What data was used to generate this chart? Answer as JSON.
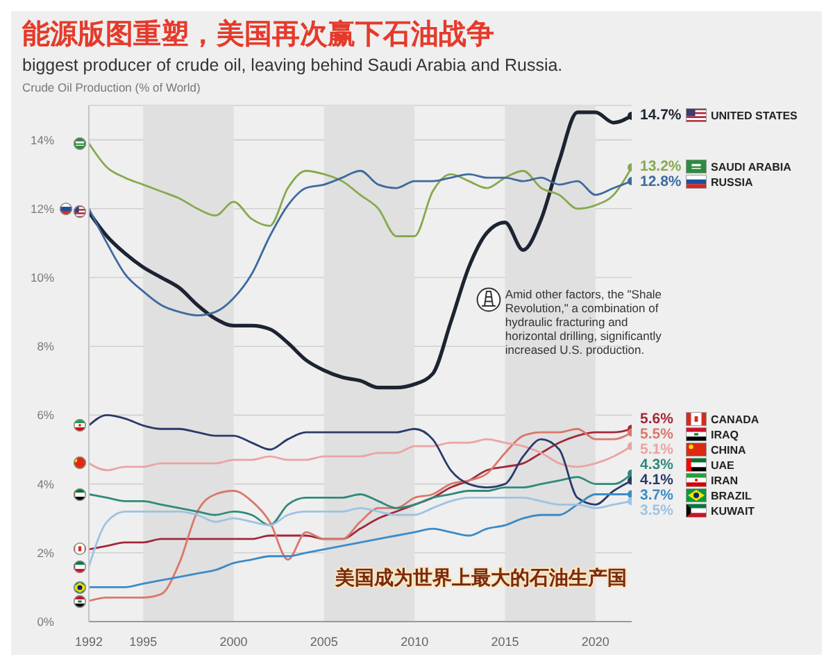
{
  "chart_data": {
    "type": "line",
    "title": "能源版图重塑，美国再次赢下石油战争",
    "subtitle": "biggest producer of crude oil, leaving behind Saudi Arabia and Russia.",
    "ylabel": "Crude Oil Production (% of World)",
    "annotations": [
      "Amid other factors, the \"Shale Revolution,\" a combination of hydraulic fracturing and horizontal drilling, significantly increased U.S. production.",
      "美国成为世界上最大的石油生产国"
    ],
    "x": [
      1992,
      1993,
      1994,
      1995,
      1996,
      1997,
      1998,
      1999,
      2000,
      2001,
      2002,
      2003,
      2004,
      2005,
      2006,
      2007,
      2008,
      2009,
      2010,
      2011,
      2012,
      2013,
      2014,
      2015,
      2016,
      2017,
      2018,
      2019,
      2020,
      2021,
      2022
    ],
    "xlim": [
      1992,
      2022
    ],
    "xticks": [
      1992,
      1995,
      2000,
      2005,
      2010,
      2015,
      2020
    ],
    "ylim": [
      0,
      15
    ],
    "yticks": [
      {
        "value": 0,
        "label": "0%"
      },
      {
        "value": 2,
        "label": "2%"
      },
      {
        "value": 4,
        "label": "4%"
      },
      {
        "value": 6,
        "label": "6%"
      },
      {
        "value": 8,
        "label": "8%"
      },
      {
        "value": 10,
        "label": "10%"
      },
      {
        "value": 12,
        "label": "12%"
      },
      {
        "value": 14,
        "label": "14%"
      }
    ],
    "grid": "y",
    "legend": "right",
    "bands": [
      {
        "axis": "x",
        "from": 1995,
        "to": 2000,
        "color": "#e0e0e0"
      },
      {
        "axis": "x",
        "from": 2005,
        "to": 2010,
        "color": "#e0e0e0"
      },
      {
        "axis": "x",
        "from": 2015,
        "to": 2020,
        "color": "#e0e0e0"
      }
    ],
    "series": [
      {
        "name": "UNITED STATES",
        "color": "#1c2331",
        "values": [
          11.9,
          11.2,
          10.7,
          10.3,
          10.0,
          9.7,
          9.2,
          8.8,
          8.6,
          8.6,
          8.5,
          8.1,
          7.6,
          7.3,
          7.1,
          7.0,
          6.8,
          6.8,
          6.9,
          7.2,
          8.7,
          10.3,
          11.3,
          11.6,
          10.8,
          11.7,
          13.4,
          14.8,
          14.8,
          14.5,
          14.7
        ],
        "value_labels": [
          null,
          null,
          null,
          null,
          null,
          null,
          null,
          null,
          null,
          null,
          null,
          null,
          null,
          null,
          null,
          null,
          null,
          null,
          null,
          null,
          null,
          null,
          null,
          null,
          null,
          null,
          null,
          null,
          null,
          null,
          "14.7%"
        ]
      },
      {
        "name": "SAUDI ARABIA",
        "color": "#86a94f",
        "values": [
          13.9,
          13.2,
          12.9,
          12.7,
          12.5,
          12.3,
          12.0,
          11.8,
          12.2,
          11.7,
          11.5,
          12.6,
          13.1,
          13.0,
          12.8,
          12.4,
          12.0,
          11.2,
          11.2,
          12.5,
          13.0,
          12.8,
          12.6,
          12.9,
          13.1,
          12.6,
          12.4,
          12.0,
          12.1,
          12.4,
          13.2
        ],
        "value_labels": [
          null,
          null,
          null,
          null,
          null,
          null,
          null,
          null,
          null,
          null,
          null,
          null,
          null,
          null,
          null,
          null,
          null,
          null,
          null,
          null,
          null,
          null,
          null,
          null,
          null,
          null,
          null,
          null,
          null,
          null,
          "13.2%"
        ]
      },
      {
        "name": "RUSSIA",
        "color": "#3d6a9e",
        "values": [
          12.0,
          11.0,
          10.1,
          9.6,
          9.2,
          9.0,
          8.9,
          9.0,
          9.4,
          10.1,
          11.2,
          12.1,
          12.6,
          12.7,
          12.9,
          13.1,
          12.7,
          12.6,
          12.8,
          12.8,
          12.9,
          13.0,
          12.9,
          12.9,
          12.8,
          12.9,
          12.7,
          12.8,
          12.4,
          12.6,
          12.8
        ],
        "value_labels": [
          null,
          null,
          null,
          null,
          null,
          null,
          null,
          null,
          null,
          null,
          null,
          null,
          null,
          null,
          null,
          null,
          null,
          null,
          null,
          null,
          null,
          null,
          null,
          null,
          null,
          null,
          null,
          null,
          null,
          null,
          "12.8%"
        ]
      },
      {
        "name": "CANADA",
        "color": "#a1283a",
        "values": [
          2.1,
          2.2,
          2.3,
          2.3,
          2.4,
          2.4,
          2.4,
          2.4,
          2.4,
          2.4,
          2.5,
          2.5,
          2.5,
          2.4,
          2.4,
          2.7,
          3.0,
          3.2,
          3.4,
          3.6,
          3.9,
          4.1,
          4.4,
          4.5,
          4.6,
          4.9,
          5.2,
          5.4,
          5.5,
          5.5,
          5.6
        ],
        "value_labels": [
          null,
          null,
          null,
          null,
          null,
          null,
          null,
          null,
          null,
          null,
          null,
          null,
          null,
          null,
          null,
          null,
          null,
          null,
          null,
          null,
          null,
          null,
          null,
          null,
          null,
          null,
          null,
          null,
          null,
          null,
          "5.6%"
        ]
      },
      {
        "name": "IRAQ",
        "color": "#d9786a",
        "values": [
          0.6,
          0.7,
          0.7,
          0.7,
          0.8,
          1.7,
          3.2,
          3.7,
          3.8,
          3.5,
          2.9,
          1.8,
          2.6,
          2.4,
          2.4,
          2.9,
          3.3,
          3.3,
          3.6,
          3.7,
          4.0,
          4.1,
          4.3,
          4.9,
          5.4,
          5.5,
          5.5,
          5.6,
          5.3,
          5.3,
          5.5
        ],
        "value_labels": [
          null,
          null,
          null,
          null,
          null,
          null,
          null,
          null,
          null,
          null,
          null,
          null,
          null,
          null,
          null,
          null,
          null,
          null,
          null,
          null,
          null,
          null,
          null,
          null,
          null,
          null,
          null,
          null,
          null,
          null,
          "5.5%"
        ]
      },
      {
        "name": "CHINA",
        "color": "#eba3a3",
        "values": [
          4.6,
          4.4,
          4.5,
          4.5,
          4.6,
          4.6,
          4.6,
          4.6,
          4.7,
          4.7,
          4.8,
          4.7,
          4.7,
          4.8,
          4.8,
          4.8,
          4.9,
          4.9,
          5.1,
          5.1,
          5.2,
          5.2,
          5.3,
          5.2,
          5.1,
          4.9,
          4.6,
          4.5,
          4.6,
          4.8,
          5.1
        ],
        "value_labels": [
          null,
          null,
          null,
          null,
          null,
          null,
          null,
          null,
          null,
          null,
          null,
          null,
          null,
          null,
          null,
          null,
          null,
          null,
          null,
          null,
          null,
          null,
          null,
          null,
          null,
          null,
          null,
          null,
          null,
          null,
          "5.1%"
        ]
      },
      {
        "name": "UAE",
        "color": "#2f8a78",
        "values": [
          3.7,
          3.6,
          3.5,
          3.5,
          3.4,
          3.3,
          3.2,
          3.1,
          3.2,
          3.1,
          2.8,
          3.4,
          3.6,
          3.6,
          3.6,
          3.7,
          3.5,
          3.3,
          3.4,
          3.6,
          3.7,
          3.8,
          3.8,
          3.9,
          3.9,
          4.0,
          4.1,
          4.2,
          4.0,
          4.0,
          4.3
        ],
        "value_labels": [
          null,
          null,
          null,
          null,
          null,
          null,
          null,
          null,
          null,
          null,
          null,
          null,
          null,
          null,
          null,
          null,
          null,
          null,
          null,
          null,
          null,
          null,
          null,
          null,
          null,
          null,
          null,
          null,
          null,
          null,
          "4.3%"
        ]
      },
      {
        "name": "IRAN",
        "color": "#2a3a6a",
        "values": [
          5.7,
          6.0,
          5.9,
          5.7,
          5.6,
          5.6,
          5.5,
          5.4,
          5.4,
          5.2,
          5.0,
          5.3,
          5.5,
          5.5,
          5.5,
          5.5,
          5.5,
          5.5,
          5.6,
          5.3,
          4.4,
          4.0,
          3.9,
          4.0,
          4.8,
          5.3,
          5.0,
          3.6,
          3.4,
          3.8,
          4.1
        ],
        "value_labels": [
          null,
          null,
          null,
          null,
          null,
          null,
          null,
          null,
          null,
          null,
          null,
          null,
          null,
          null,
          null,
          null,
          null,
          null,
          null,
          null,
          null,
          null,
          null,
          null,
          null,
          null,
          null,
          null,
          null,
          null,
          "4.1%"
        ]
      },
      {
        "name": "BRAZIL",
        "color": "#3b8bc8",
        "values": [
          1.0,
          1.0,
          1.0,
          1.1,
          1.2,
          1.3,
          1.4,
          1.5,
          1.7,
          1.8,
          1.9,
          1.9,
          2.0,
          2.1,
          2.2,
          2.3,
          2.4,
          2.5,
          2.6,
          2.7,
          2.6,
          2.5,
          2.7,
          2.8,
          3.0,
          3.1,
          3.1,
          3.4,
          3.7,
          3.7,
          3.7
        ],
        "value_labels": [
          null,
          null,
          null,
          null,
          null,
          null,
          null,
          null,
          null,
          null,
          null,
          null,
          null,
          null,
          null,
          null,
          null,
          null,
          null,
          null,
          null,
          null,
          null,
          null,
          null,
          null,
          null,
          null,
          null,
          null,
          "3.7%"
        ]
      },
      {
        "name": "KUWAIT",
        "color": "#9cc3e3",
        "values": [
          1.6,
          2.9,
          3.2,
          3.2,
          3.2,
          3.2,
          3.1,
          2.9,
          3.0,
          2.9,
          2.8,
          3.1,
          3.2,
          3.2,
          3.2,
          3.3,
          3.2,
          3.1,
          3.1,
          3.3,
          3.5,
          3.6,
          3.6,
          3.6,
          3.6,
          3.5,
          3.4,
          3.4,
          3.3,
          3.4,
          3.5
        ],
        "value_labels": [
          null,
          null,
          null,
          null,
          null,
          null,
          null,
          null,
          null,
          null,
          null,
          null,
          null,
          null,
          null,
          null,
          null,
          null,
          null,
          null,
          null,
          null,
          null,
          null,
          null,
          null,
          null,
          null,
          null,
          null,
          "3.5%"
        ]
      }
    ]
  }
}
